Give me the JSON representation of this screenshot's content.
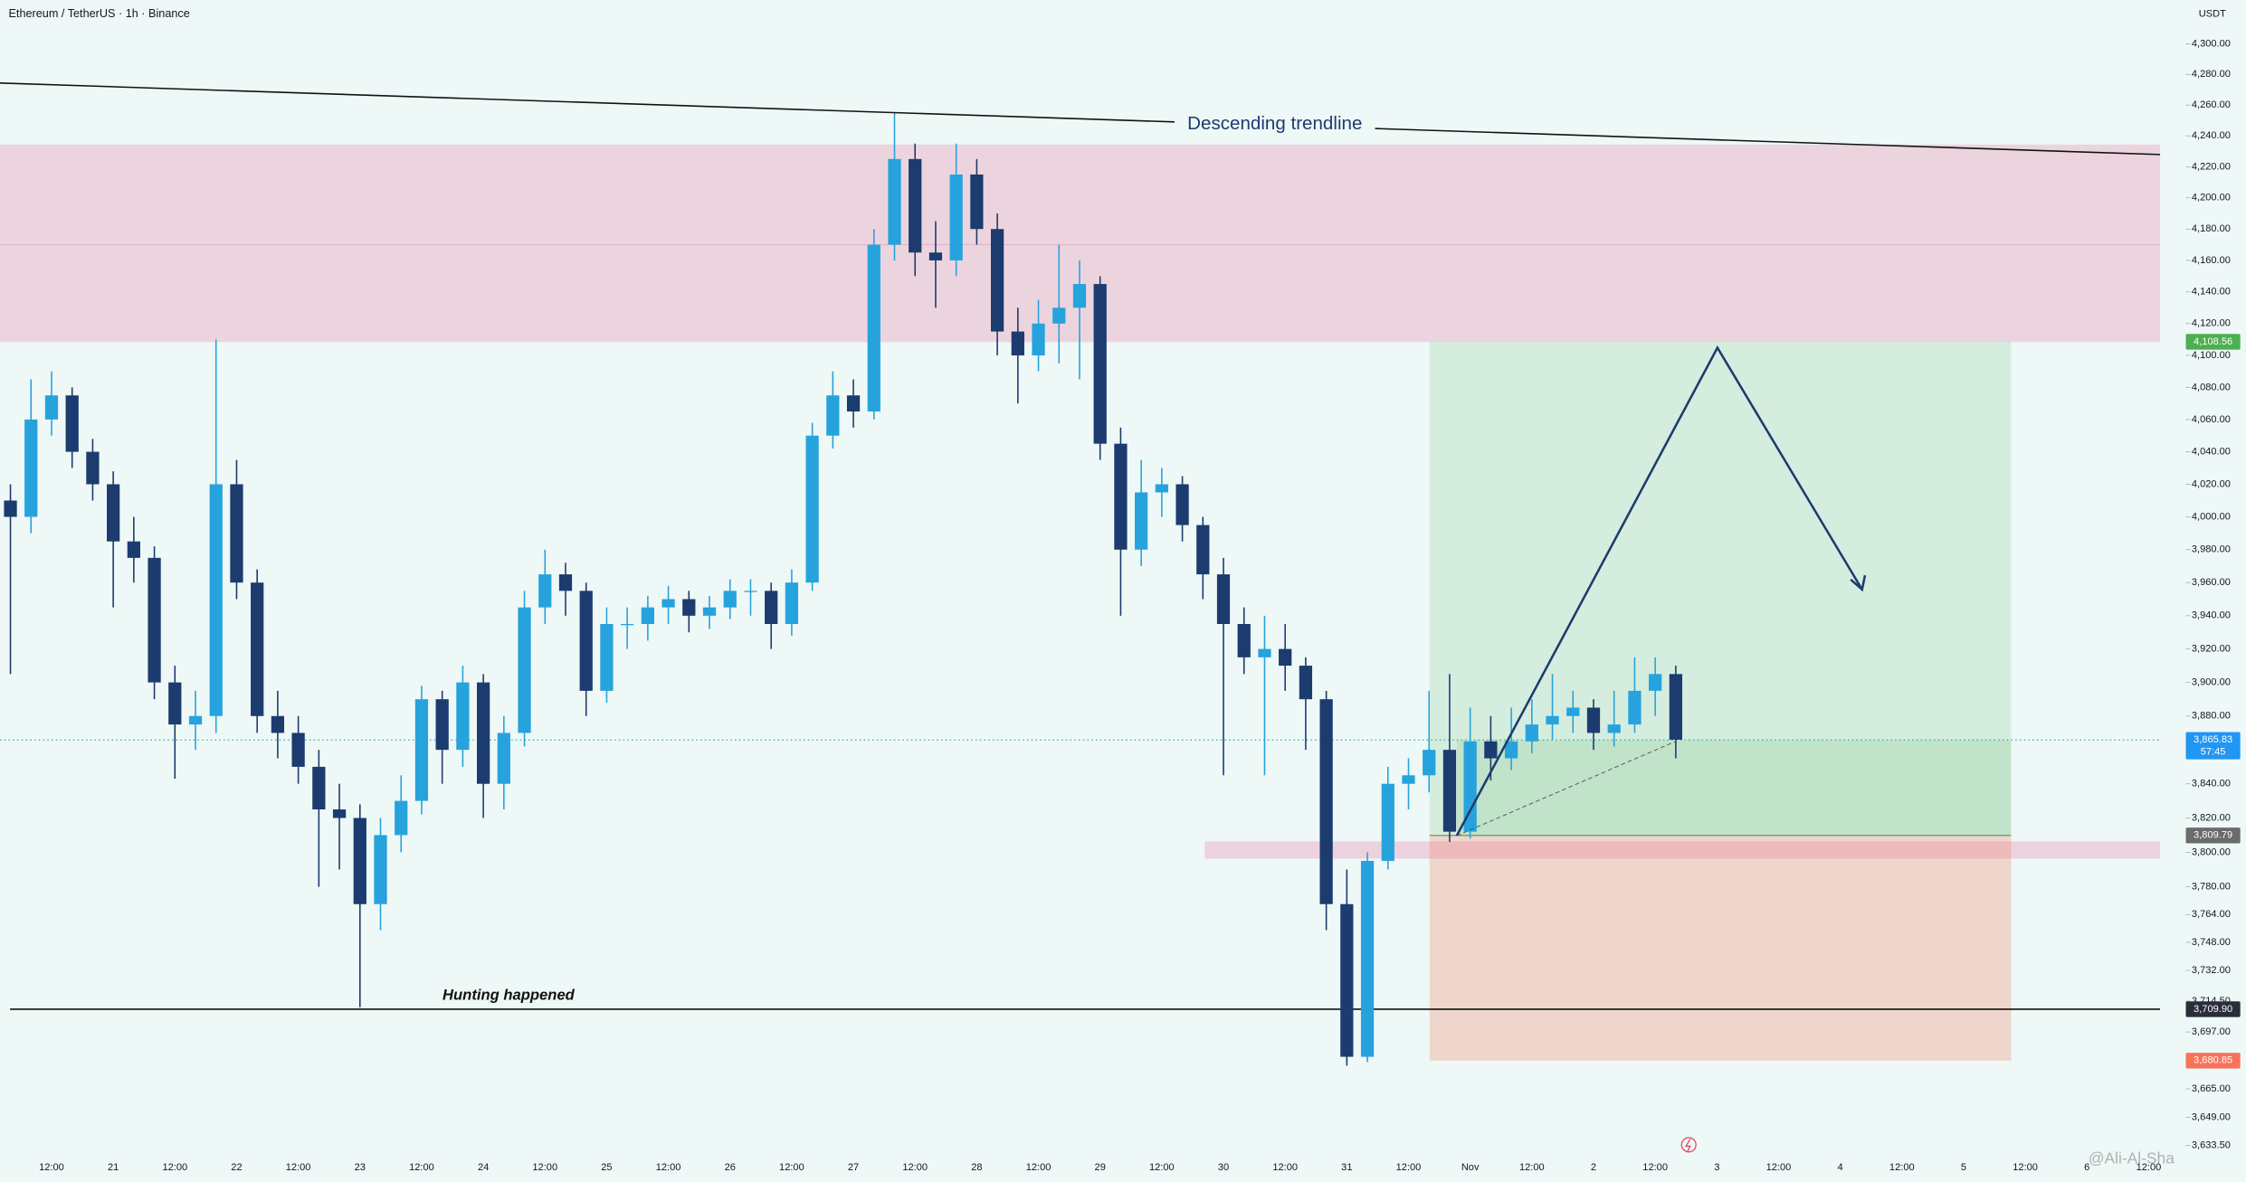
{
  "chart_data": {
    "type": "candlestick",
    "title": "Ethereum / TetherUS · 1h · Binance",
    "y_unit": "USDT",
    "log_scale": true,
    "ylim": [
      3629,
      4329
    ],
    "yticks": [
      {
        "value": 4300,
        "label": "4,300.00"
      },
      {
        "value": 4280,
        "label": "4,280.00"
      },
      {
        "value": 4260,
        "label": "4,260.00"
      },
      {
        "value": 4240,
        "label": "4,240.00"
      },
      {
        "value": 4220,
        "label": "4,220.00"
      },
      {
        "value": 4200,
        "label": "4,200.00"
      },
      {
        "value": 4180,
        "label": "4,180.00"
      },
      {
        "value": 4160,
        "label": "4,160.00"
      },
      {
        "value": 4140,
        "label": "4,140.00"
      },
      {
        "value": 4120,
        "label": "4,120.00"
      },
      {
        "value": 4100,
        "label": "4,100.00"
      },
      {
        "value": 4080,
        "label": "4,080.00"
      },
      {
        "value": 4060,
        "label": "4,060.00"
      },
      {
        "value": 4040,
        "label": "4,040.00"
      },
      {
        "value": 4020,
        "label": "4,020.00"
      },
      {
        "value": 4000,
        "label": "4,000.00"
      },
      {
        "value": 3980,
        "label": "3,980.00"
      },
      {
        "value": 3960,
        "label": "3,960.00"
      },
      {
        "value": 3940,
        "label": "3,940.00"
      },
      {
        "value": 3920,
        "label": "3,920.00"
      },
      {
        "value": 3900,
        "label": "3,900.00"
      },
      {
        "value": 3880,
        "label": "3,880.00"
      },
      {
        "value": 3860,
        "label": "3,860.00"
      },
      {
        "value": 3840,
        "label": "3,840.00"
      },
      {
        "value": 3820,
        "label": "3,820.00"
      },
      {
        "value": 3800,
        "label": "3,800.00"
      },
      {
        "value": 3780,
        "label": "3,780.00"
      },
      {
        "value": 3764,
        "label": "3,764.00"
      },
      {
        "value": 3748,
        "label": "3,748.00"
      },
      {
        "value": 3732,
        "label": "3,732.00"
      },
      {
        "value": 3714.5,
        "label": "3,714.50"
      },
      {
        "value": 3697,
        "label": "3,697.00"
      },
      {
        "value": 3665,
        "label": "3,665.00"
      },
      {
        "value": 3649,
        "label": "3,649.00"
      },
      {
        "value": 3633.5,
        "label": "3,633.50"
      }
    ],
    "x_labels": [
      "12:00",
      "21",
      "12:00",
      "22",
      "12:00",
      "23",
      "12:00",
      "24",
      "12:00",
      "25",
      "12:00",
      "26",
      "12:00",
      "27",
      "12:00",
      "28",
      "12:00",
      "29",
      "12:00",
      "30",
      "12:00",
      "31",
      "12:00",
      "Nov",
      "12:00",
      "2",
      "12:00",
      "3",
      "12:00",
      "4",
      "12:00",
      "5",
      "12:00",
      "6",
      "12:00"
    ],
    "up_color": "#26a3dd",
    "down_color": "#1c3b6e",
    "candles": [
      [
        4010,
        4020,
        3905,
        4000
      ],
      [
        4000,
        4085,
        3990,
        4060
      ],
      [
        4060,
        4090,
        4050,
        4075
      ],
      [
        4075,
        4080,
        4030,
        4040
      ],
      [
        4040,
        4048,
        4010,
        4020
      ],
      [
        4020,
        4028,
        3945,
        3985
      ],
      [
        3985,
        4000,
        3960,
        3975
      ],
      [
        3975,
        3982,
        3890,
        3900
      ],
      [
        3900,
        3910,
        3843,
        3875
      ],
      [
        3875,
        3895,
        3860,
        3880
      ],
      [
        3880,
        4110,
        3870,
        4020
      ],
      [
        4020,
        4035,
        3950,
        3960
      ],
      [
        3960,
        3968,
        3870,
        3880
      ],
      [
        3880,
        3895,
        3855,
        3870
      ],
      [
        3870,
        3880,
        3840,
        3850
      ],
      [
        3850,
        3860,
        3780,
        3825
      ],
      [
        3825,
        3840,
        3790,
        3820
      ],
      [
        3820,
        3828,
        3711,
        3770
      ],
      [
        3770,
        3820,
        3755,
        3810
      ],
      [
        3810,
        3845,
        3800,
        3830
      ],
      [
        3830,
        3898,
        3822,
        3890
      ],
      [
        3890,
        3895,
        3840,
        3860
      ],
      [
        3860,
        3910,
        3850,
        3900
      ],
      [
        3900,
        3905,
        3820,
        3840
      ],
      [
        3840,
        3880,
        3825,
        3870
      ],
      [
        3870,
        3955,
        3862,
        3945
      ],
      [
        3945,
        3980,
        3935,
        3965
      ],
      [
        3965,
        3972,
        3940,
        3955
      ],
      [
        3955,
        3960,
        3880,
        3895
      ],
      [
        3895,
        3945,
        3888,
        3935
      ],
      [
        3935,
        3945,
        3920,
        3935
      ],
      [
        3935,
        3952,
        3925,
        3945
      ],
      [
        3945,
        3958,
        3935,
        3950
      ],
      [
        3950,
        3955,
        3930,
        3940
      ],
      [
        3940,
        3952,
        3932,
        3945
      ],
      [
        3945,
        3962,
        3938,
        3955
      ],
      [
        3955,
        3962,
        3940,
        3955
      ],
      [
        3955,
        3960,
        3920,
        3935
      ],
      [
        3935,
        3968,
        3928,
        3960
      ],
      [
        3960,
        4058,
        3955,
        4050
      ],
      [
        4050,
        4090,
        4042,
        4075
      ],
      [
        4075,
        4085,
        4055,
        4065
      ],
      [
        4065,
        4180,
        4060,
        4170
      ],
      [
        4170,
        4255,
        4160,
        4225
      ],
      [
        4225,
        4235,
        4150,
        4165
      ],
      [
        4165,
        4185,
        4130,
        4160
      ],
      [
        4160,
        4235,
        4150,
        4215
      ],
      [
        4215,
        4225,
        4170,
        4180
      ],
      [
        4180,
        4190,
        4100,
        4115
      ],
      [
        4115,
        4130,
        4070,
        4100
      ],
      [
        4100,
        4135,
        4090,
        4120
      ],
      [
        4120,
        4170,
        4095,
        4130
      ],
      [
        4130,
        4160,
        4085,
        4145
      ],
      [
        4145,
        4150,
        4035,
        4045
      ],
      [
        4045,
        4055,
        3940,
        3980
      ],
      [
        3980,
        4035,
        3970,
        4015
      ],
      [
        4015,
        4030,
        4000,
        4020
      ],
      [
        4020,
        4025,
        3985,
        3995
      ],
      [
        3995,
        4000,
        3950,
        3965
      ],
      [
        3965,
        3975,
        3845,
        3935
      ],
      [
        3935,
        3945,
        3905,
        3915
      ],
      [
        3915,
        3940,
        3845,
        3920
      ],
      [
        3920,
        3935,
        3895,
        3910
      ],
      [
        3910,
        3915,
        3860,
        3890
      ],
      [
        3890,
        3895,
        3755,
        3770
      ],
      [
        3770,
        3790,
        3678,
        3683
      ],
      [
        3683,
        3800,
        3680,
        3795
      ],
      [
        3795,
        3850,
        3790,
        3840
      ],
      [
        3840,
        3855,
        3825,
        3845
      ],
      [
        3845,
        3895,
        3835,
        3860
      ],
      [
        3860,
        3905,
        3806,
        3812
      ],
      [
        3812,
        3885,
        3808,
        3865
      ],
      [
        3865,
        3880,
        3842,
        3855
      ],
      [
        3855,
        3885,
        3848,
        3865
      ],
      [
        3865,
        3890,
        3858,
        3875
      ],
      [
        3875,
        3905,
        3866,
        3880
      ],
      [
        3880,
        3895,
        3870,
        3885
      ],
      [
        3885,
        3890,
        3860,
        3870
      ],
      [
        3870,
        3895,
        3862,
        3875
      ],
      [
        3875,
        3915,
        3870,
        3895
      ],
      [
        3895,
        3915,
        3880,
        3905
      ],
      [
        3905,
        3910,
        3855,
        3866
      ]
    ],
    "price_labels": [
      {
        "value": 4108.56,
        "label": "4,108.56",
        "color": "#4caf50"
      },
      {
        "value": 3865.83,
        "label": "3,865.83",
        "color": "#2196f3"
      },
      {
        "value": 3809.79,
        "label": "3,809.79",
        "color": "#6b6b6b"
      },
      {
        "value": 3709.9,
        "label": "3,709.90",
        "color": "#2a2e39"
      },
      {
        "value": 3680.85,
        "label": "3,680.85",
        "color": "#f7735a"
      }
    ],
    "countdown": "57:45",
    "annotations": [
      "Descending trendline",
      "Hunting happened"
    ],
    "watermark": "@Ali-Al-Sha"
  }
}
